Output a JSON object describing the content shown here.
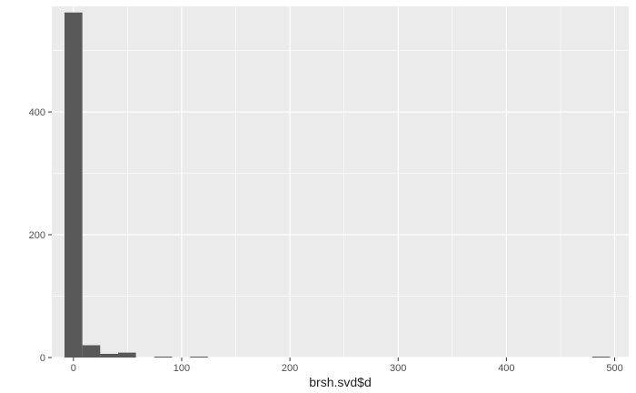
{
  "chart_data": {
    "type": "bar",
    "subtype": "histogram",
    "title": "",
    "xlabel": "brsh.svd$d",
    "ylabel": "",
    "xlim": [
      -20,
      513
    ],
    "ylim": [
      0,
      572
    ],
    "x_ticks": [
      0,
      100,
      200,
      300,
      400,
      500
    ],
    "x_tick_labels": [
      "0",
      "100",
      "200",
      "300",
      "400",
      "500"
    ],
    "y_ticks": [
      0,
      200,
      400
    ],
    "y_tick_labels": [
      "0",
      "200",
      "400"
    ],
    "bin_width": 16.5,
    "bins": [
      {
        "x0": -8.25,
        "x1": 8.25,
        "count": 562
      },
      {
        "x0": 8.25,
        "x1": 24.75,
        "count": 20
      },
      {
        "x0": 24.75,
        "x1": 41.25,
        "count": 6
      },
      {
        "x0": 41.25,
        "x1": 57.75,
        "count": 8
      },
      {
        "x0": 74.75,
        "x1": 91.25,
        "count": 1
      },
      {
        "x0": 107.75,
        "x1": 124.25,
        "count": 1
      },
      {
        "x0": 479.25,
        "x1": 495.75,
        "count": 1
      }
    ],
    "grid": true,
    "colors": {
      "panel": "#ebebeb",
      "grid_major": "#ffffff",
      "bar_fill": "#595959",
      "tick_text": "#4d4d4d",
      "axis_title_text": "#222222"
    }
  }
}
